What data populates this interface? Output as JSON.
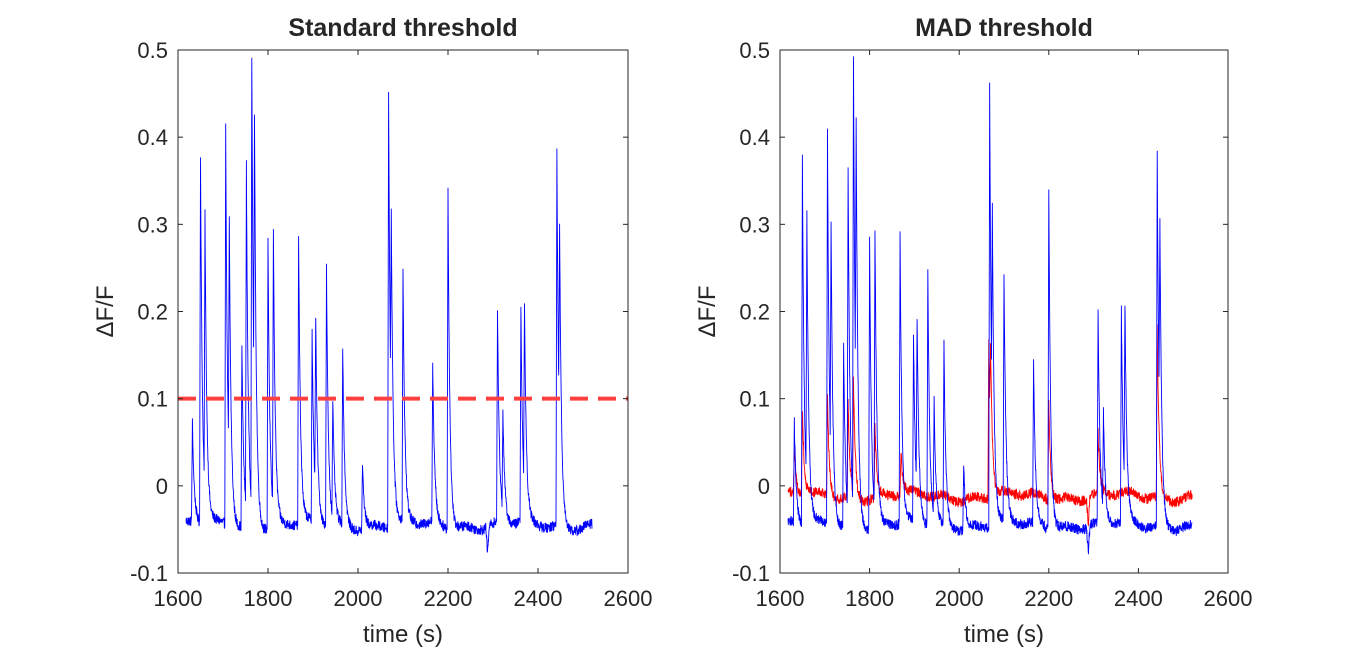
{
  "chart_data": [
    {
      "type": "line",
      "title": "Standard threshold",
      "xlabel": "time (s)",
      "ylabel": "ΔF/F",
      "xlim": [
        1600,
        2600
      ],
      "ylim": [
        -0.1,
        0.5
      ],
      "xticks": [
        1600,
        1800,
        2000,
        2200,
        2400,
        2600
      ],
      "yticks": [
        -0.1,
        0,
        0.1,
        0.2,
        0.3,
        0.4,
        0.5
      ],
      "grid": false,
      "legend": "none",
      "baseline": -0.045,
      "series": [
        {
          "color": "#0000ff",
          "style": "trace",
          "peaks": [
            [
              1632,
              0.07
            ],
            [
              1650,
              0.38
            ],
            [
              1660,
              0.27
            ],
            [
              1706,
              0.41
            ],
            [
              1714,
              0.24
            ],
            [
              1742,
              0.16
            ],
            [
              1752,
              0.35
            ],
            [
              1764,
              0.475
            ],
            [
              1770,
              0.3
            ],
            [
              1800,
              0.29
            ],
            [
              1812,
              0.28
            ],
            [
              1868,
              0.29
            ],
            [
              1898,
              0.17
            ],
            [
              1906,
              0.16
            ],
            [
              1930,
              0.25
            ],
            [
              1944,
              0.09
            ],
            [
              1966,
              0.16
            ],
            [
              2010,
              0.03
            ],
            [
              2068,
              0.46
            ],
            [
              2074,
              0.2
            ],
            [
              2100,
              0.24
            ],
            [
              2166,
              0.14
            ],
            [
              2200,
              0.345
            ],
            [
              2310,
              0.2
            ],
            [
              2322,
              0.07
            ],
            [
              2362,
              0.2
            ],
            [
              2370,
              0.17
            ],
            [
              2442,
              0.385
            ],
            [
              2448,
              0.2
            ]
          ]
        },
        {
          "color": "#ff4040",
          "style": "dashed",
          "x": [
            1600,
            2600
          ],
          "y": [
            0.1,
            0.1
          ]
        }
      ]
    },
    {
      "type": "line",
      "title": "MAD threshold",
      "xlabel": "time (s)",
      "ylabel": "ΔF/F",
      "xlim": [
        1600,
        2600
      ],
      "ylim": [
        -0.1,
        0.5
      ],
      "xticks": [
        1600,
        1800,
        2000,
        2200,
        2400,
        2600
      ],
      "yticks": [
        -0.1,
        0,
        0.1,
        0.2,
        0.3,
        0.4,
        0.5
      ],
      "grid": false,
      "legend": "none",
      "series": [
        {
          "color": "#ff0000",
          "style": "trace",
          "baseline": -0.012,
          "peaks": [
            [
              1632,
              0.04
            ],
            [
              1650,
              0.09
            ],
            [
              1706,
              0.1
            ],
            [
              1752,
              0.1
            ],
            [
              1764,
              0.12
            ],
            [
              1812,
              0.07
            ],
            [
              1870,
              0.04
            ],
            [
              2066,
              0.17
            ],
            [
              2070,
              0.1
            ],
            [
              2200,
              0.1
            ],
            [
              2310,
              0.06
            ],
            [
              2442,
              0.19
            ]
          ]
        },
        {
          "color": "#0000ff",
          "style": "trace",
          "baseline": -0.045,
          "peaks": [
            [
              1632,
              0.07
            ],
            [
              1650,
              0.38
            ],
            [
              1660,
              0.27
            ],
            [
              1706,
              0.41
            ],
            [
              1714,
              0.24
            ],
            [
              1742,
              0.16
            ],
            [
              1752,
              0.35
            ],
            [
              1764,
              0.475
            ],
            [
              1770,
              0.3
            ],
            [
              1800,
              0.29
            ],
            [
              1812,
              0.28
            ],
            [
              1868,
              0.29
            ],
            [
              1898,
              0.17
            ],
            [
              1906,
              0.16
            ],
            [
              1930,
              0.25
            ],
            [
              1944,
              0.09
            ],
            [
              1966,
              0.16
            ],
            [
              2010,
              0.03
            ],
            [
              2068,
              0.46
            ],
            [
              2074,
              0.2
            ],
            [
              2100,
              0.24
            ],
            [
              2166,
              0.14
            ],
            [
              2200,
              0.345
            ],
            [
              2310,
              0.2
            ],
            [
              2322,
              0.07
            ],
            [
              2362,
              0.2
            ],
            [
              2370,
              0.17
            ],
            [
              2442,
              0.385
            ],
            [
              2448,
              0.2
            ]
          ]
        }
      ]
    }
  ]
}
